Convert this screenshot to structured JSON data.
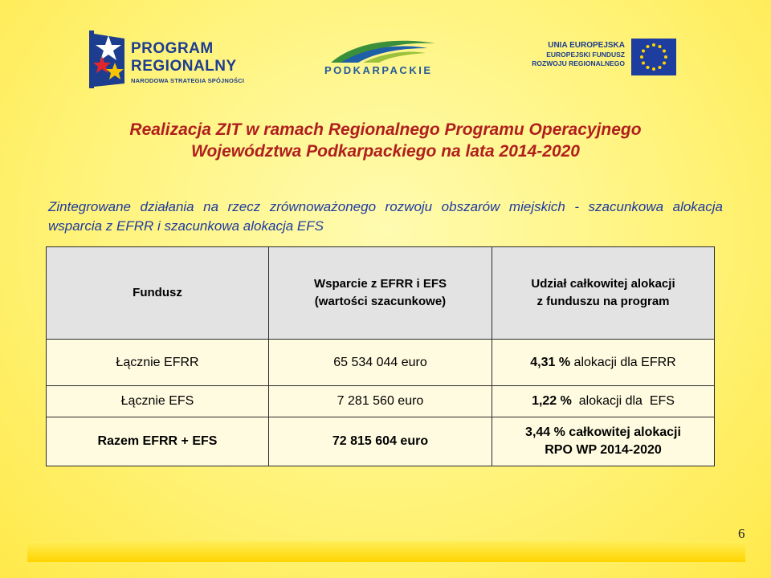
{
  "logos": {
    "program_regionalny": {
      "line1": "PROGRAM",
      "line2": "REGIONALNY",
      "line3": "NARODOWA STRATEGIA SPÓJNOŚCI"
    },
    "podkarpackie": {
      "text": "PODKARPACKIE"
    },
    "unia": {
      "line1": "UNIA EUROPEJSKA",
      "line2": "EUROPEJSKI FUNDUSZ",
      "line3": "ROZWOJU REGIONALNEGO"
    }
  },
  "title": {
    "line1": "Realizacja ZIT w ramach Regionalnego Programu Operacyjnego",
    "line2": "Województwa Podkarpackiego na lata 2014-2020"
  },
  "subtitle": "Zintegrowane działania na rzecz zrównoważonego rozwoju obszarów miejskich - szacunkowa alokacja wsparcia z EFRR i szacunkowa alokacja EFS",
  "table": {
    "headers": {
      "col1": "Fundusz",
      "col2_line1": "Wsparcie z EFRR i EFS",
      "col2_line2": "(wartości szacunkowe)",
      "col3_line1": "Udział całkowitej alokacji",
      "col3_line2": "z funduszu na program"
    },
    "rows": [
      {
        "fund": "Łącznie EFRR",
        "value": "65 534 044 euro",
        "share_pct": "4,31 %",
        "share_text": " alokacji dla EFRR"
      },
      {
        "fund": "Łącznie EFS",
        "value": "7 281 560 euro",
        "share_pct": "1,22 %",
        "share_text": "  alokacji dla  EFS"
      },
      {
        "fund": "Razem EFRR + EFS",
        "value": "72 815 604 euro",
        "share_line1": "3,44 % całkowitej alokacji",
        "share_line2": "RPO WP 2014-2020"
      }
    ]
  },
  "page_number": "6",
  "colors": {
    "title": "#b01e1e",
    "subtitle": "#1e3aa0",
    "header_bg": "#e3e3e3",
    "background": "#fff37a"
  }
}
